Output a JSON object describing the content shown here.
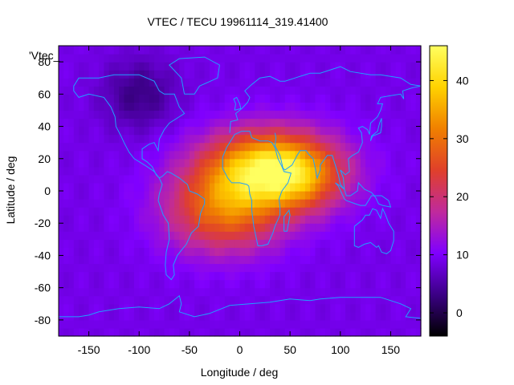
{
  "chart_data": {
    "type": "heatmap",
    "title": "VTEC / TECU 19961114_319.41400",
    "xlabel": "Longitude / deg",
    "ylabel": "Latitude / deg",
    "xlim": [
      -180,
      180
    ],
    "ylim": [
      -90,
      90
    ],
    "x_ticks": [
      -150,
      -100,
      -50,
      0,
      50,
      100,
      150
    ],
    "x_tick_labels": [
      "-150",
      "-100",
      "-50",
      "0",
      "50",
      "100",
      "150"
    ],
    "y_ticks": [
      -80,
      -60,
      -40,
      -20,
      0,
      20,
      40,
      60,
      80
    ],
    "y_tick_labels": [
      "-80",
      "-60",
      "-40",
      "-20",
      "0",
      "20",
      "40",
      "60",
      "80"
    ],
    "colorbar": {
      "range": [
        -4,
        46
      ],
      "ticks": [
        0,
        10,
        20,
        30,
        40
      ],
      "tick_labels": [
        "0",
        "10",
        "20",
        "30",
        "40"
      ],
      "palette": [
        "#000000",
        "#3b0085",
        "#8000ff",
        "#c02a9c",
        "#e0402a",
        "#f08000",
        "#ffd200",
        "#ffff60"
      ]
    },
    "legend_entry": "'Vtec_",
    "field_model": {
      "background_tecu": 9,
      "peaks": [
        {
          "lon": 30,
          "lat": 15,
          "amplitude_tecu": 31,
          "sigma_lon": 45,
          "sigma_lat": 16
        },
        {
          "lon": -15,
          "lat": -12,
          "amplitude_tecu": 20,
          "sigma_lon": 40,
          "sigma_lat": 18
        },
        {
          "lon": 60,
          "lat": 5,
          "amplitude_tecu": 10,
          "sigma_lon": 30,
          "sigma_lat": 14
        }
      ],
      "lows": [
        {
          "lon": -100,
          "lat": 60,
          "amplitude_tecu": -6,
          "sigma_lon": 25,
          "sigma_lat": 15
        }
      ],
      "cell_size_deg": 5,
      "coastline_color": "#20a0ff"
    }
  }
}
